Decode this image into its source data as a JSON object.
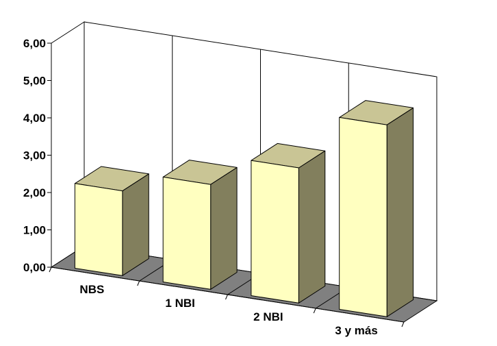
{
  "chart_data": {
    "type": "bar",
    "style": "3d",
    "categories": [
      "NBS",
      "1 NBI",
      "2 NBI",
      "3 y más"
    ],
    "values": [
      2.27,
      2.81,
      3.62,
      5.14
    ],
    "ylim": [
      0,
      6
    ],
    "yticks": [
      "0,00",
      "1,00",
      "2,00",
      "3,00",
      "4,00",
      "5,00",
      "6,00"
    ],
    "grid": true,
    "legend": "none",
    "colors": {
      "bar_front": "#ffffc0",
      "bar_top": "#c9c595",
      "bar_side": "#827f5d",
      "floor": "#808080",
      "grid": "#000000"
    }
  }
}
